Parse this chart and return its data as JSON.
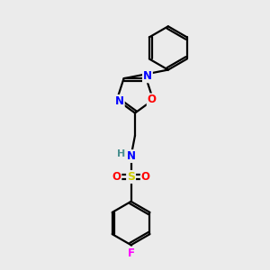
{
  "background_color": "#ebebeb",
  "bond_color": "#000000",
  "atom_colors": {
    "N": "#0000ff",
    "O": "#ff0000",
    "S": "#cccc00",
    "F": "#ff00ff",
    "H": "#4a9090",
    "C": "#000000"
  },
  "figsize": [
    3.0,
    3.0
  ],
  "dpi": 100
}
